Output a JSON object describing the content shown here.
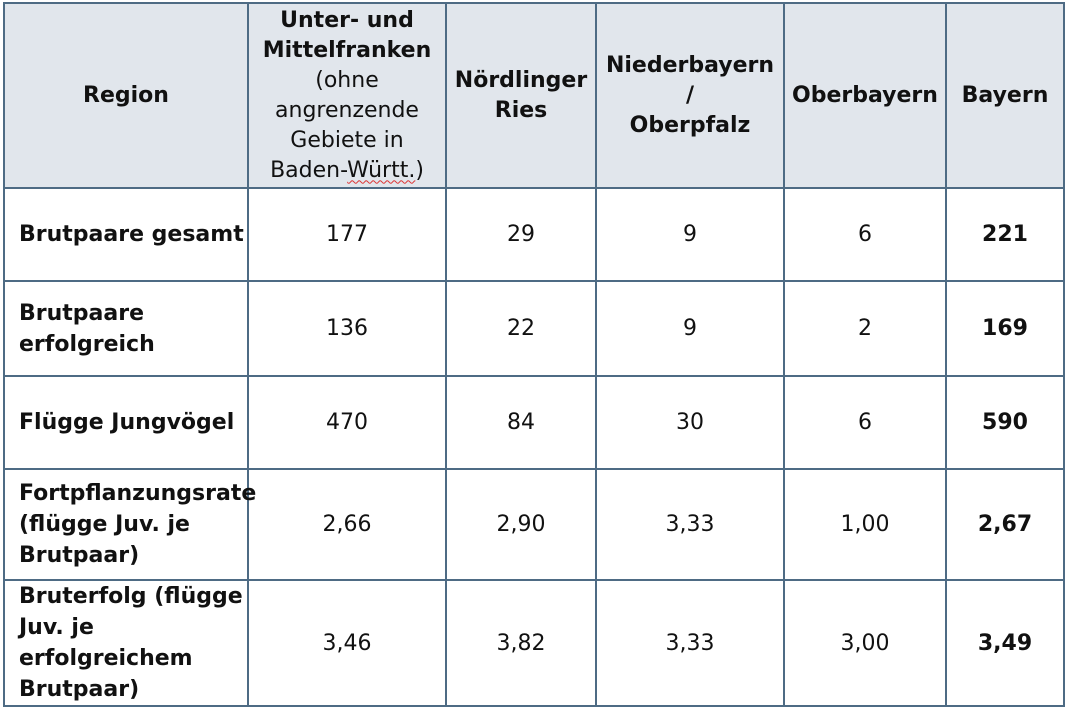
{
  "table": {
    "header": {
      "region": "Region",
      "unter_mittelfranken": {
        "line1": "Unter- und",
        "line2": "Mittelfranken",
        "line3": "(ohne",
        "line4": "angrenzende",
        "line5": "Gebiete in",
        "line6a": "Baden-",
        "line6b": "Württ.",
        "line6c": ")"
      },
      "noerdlinger": {
        "line1": "Nördlinger",
        "line2": "Ries"
      },
      "niederbayern": {
        "line1": "Niederbayern",
        "line2": "/",
        "line3": "Oberpfalz"
      },
      "oberbayern": "Oberbayern",
      "bayern": "Bayern"
    },
    "rows": [
      {
        "label_lines": [
          "Brutpaare gesamt"
        ],
        "values": [
          "177",
          "29",
          "9",
          "6"
        ],
        "total": "221"
      },
      {
        "label_lines": [
          "Brutpaare",
          "erfolgreich"
        ],
        "values": [
          "136",
          "22",
          "9",
          "2"
        ],
        "total": "169"
      },
      {
        "label_lines": [
          "Flügge Jungvögel"
        ],
        "values": [
          "470",
          "84",
          "30",
          "6"
        ],
        "total": "590"
      },
      {
        "label_lines": [
          "Fortpflanzungsrate",
          "(flügge Juv. je",
          "Brutpaar)"
        ],
        "values": [
          "2,66",
          "2,90",
          "3,33",
          "1,00"
        ],
        "total": "2,67"
      },
      {
        "label_lines": [
          "Bruterfolg (flügge",
          "Juv. je",
          "erfolgreichem",
          "Brutpaar)"
        ],
        "values": [
          "3,46",
          "3,82",
          "3,33",
          "3,00"
        ],
        "total": "3,49"
      }
    ]
  },
  "colors": {
    "header_bg": "#e1e6ec",
    "border": "#4e6b84"
  }
}
